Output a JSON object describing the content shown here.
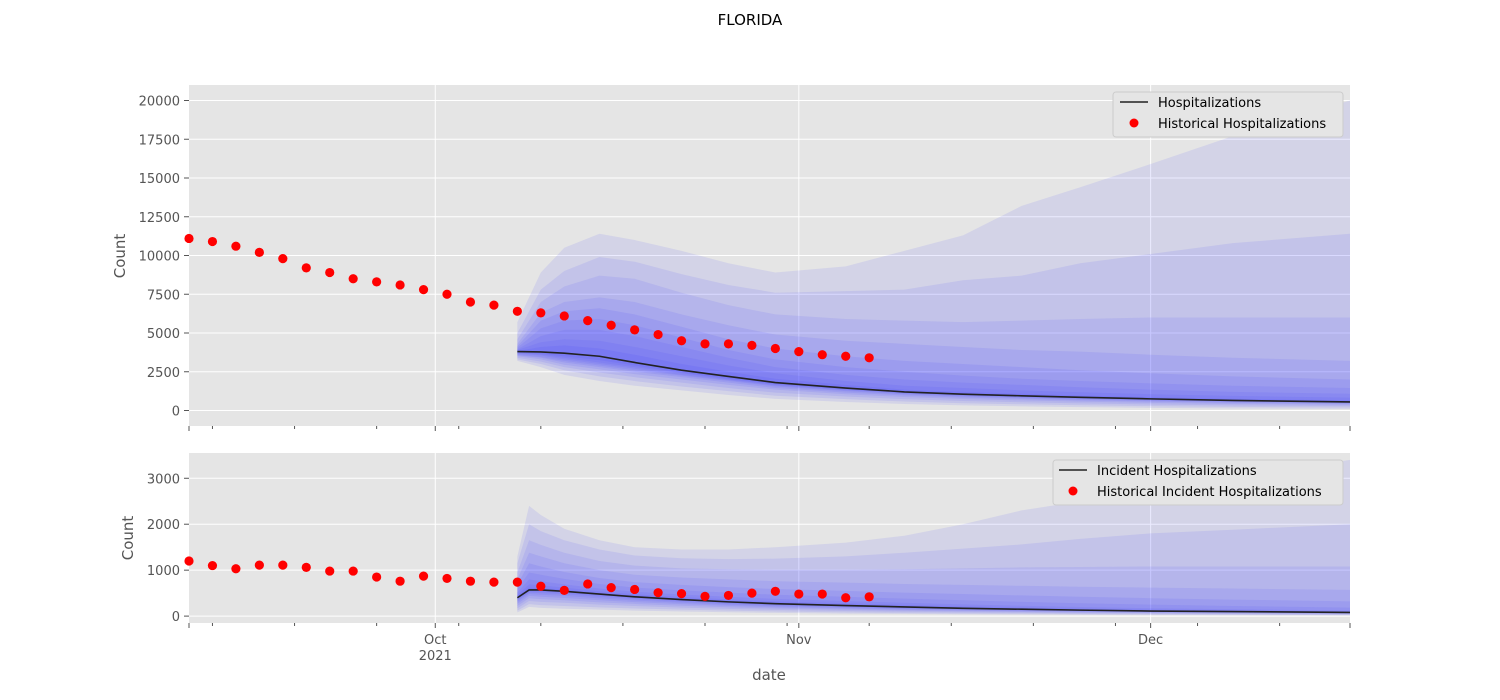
{
  "figure": {
    "title": "FLORIDA"
  },
  "chart_data": [
    {
      "type": "line",
      "ylabel": "Count",
      "xlabel": "",
      "x_range": [
        "2021-09-10",
        "2021-12-18"
      ],
      "ylim": [
        -1000,
        21000
      ],
      "yticks": [
        0,
        2500,
        5000,
        7500,
        10000,
        12500,
        15000,
        17500,
        20000
      ],
      "ytick_labels": [
        "0",
        "2500",
        "5000",
        "7500",
        "10000",
        "12500",
        "15000",
        "17500",
        "20000"
      ],
      "grid": true,
      "legend": {
        "position": "top-right",
        "entries": [
          "Hospitalizations",
          "Historical Hospitalizations"
        ]
      },
      "historical": {
        "name": "Historical Hospitalizations",
        "color": "#ff0000",
        "start_date": "2021-09-10",
        "values": [
          11100,
          10900,
          10600,
          10200,
          9800,
          9200,
          8900,
          8500,
          8300,
          8100,
          7800,
          7500,
          7000,
          6800,
          6400,
          6300,
          6100,
          5800,
          5500,
          5200,
          4900,
          4500,
          4300,
          4300,
          4200,
          4000,
          3800,
          3600,
          3500,
          3400
        ]
      },
      "forecast": {
        "name": "Hospitalizations",
        "color": "#222222",
        "band_color": "#3a3aff",
        "dates": [
          "2021-10-08",
          "2021-10-10",
          "2021-10-12",
          "2021-10-15",
          "2021-10-18",
          "2021-10-22",
          "2021-10-26",
          "2021-10-30",
          "2021-11-05",
          "2021-11-10",
          "2021-11-15",
          "2021-11-20",
          "2021-11-25",
          "2021-12-01",
          "2021-12-08",
          "2021-12-18"
        ],
        "median": [
          3800,
          3780,
          3700,
          3500,
          3100,
          2600,
          2200,
          1800,
          1450,
          1200,
          1050,
          950,
          850,
          750,
          650,
          550
        ],
        "bands": [
          {
            "low": [
              3200,
              2800,
              2300,
              1900,
              1600,
              1300,
              1000,
              750,
              550,
              420,
              330,
              270,
              220,
              170,
              130,
              100
            ],
            "high": [
              5700,
              8900,
              10500,
              11400,
              11000,
              10300,
              9500,
              8900,
              9300,
              10300,
              11300,
              13200,
              14400,
              15900,
              17700,
              20000
            ]
          },
          {
            "low": [
              3300,
              3000,
              2600,
              2200,
              1900,
              1550,
              1250,
              950,
              730,
              580,
              470,
              400,
              340,
              280,
              230,
              190
            ],
            "high": [
              5000,
              7800,
              9000,
              9900,
              9600,
              8800,
              8100,
              7600,
              7700,
              7800,
              8400,
              8700,
              9500,
              10100,
              10800,
              11400
            ]
          },
          {
            "low": [
              3400,
              3150,
              2800,
              2450,
              2150,
              1800,
              1450,
              1150,
              900,
              730,
              610,
              530,
              460,
              390,
              330,
              280
            ],
            "high": [
              4600,
              7000,
              8000,
              8700,
              8500,
              7600,
              6800,
              6200,
              5900,
              5800,
              5700,
              5800,
              5900,
              6000,
              6000,
              6000
            ]
          },
          {
            "low": [
              3500,
              3300,
              2950,
              2650,
              2350,
              2000,
              1650,
              1350,
              1050,
              870,
              740,
              650,
              570,
              490,
              420,
              360
            ],
            "high": [
              4300,
              6300,
              7000,
              7300,
              7000,
              6200,
              5500,
              4900,
              4500,
              4300,
              4100,
              3900,
              3800,
              3600,
              3400,
              3200
            ]
          },
          {
            "low": [
              3550,
              3400,
              3100,
              2800,
              2500,
              2150,
              1800,
              1450,
              1150,
              970,
              830,
              740,
              650,
              570,
              490,
              420
            ],
            "high": [
              4150,
              5800,
              6400,
              6600,
              6200,
              5400,
              4600,
              4000,
              3500,
              3200,
              3000,
              2800,
              2600,
              2400,
              2200,
              2000
            ]
          },
          {
            "low": [
              3600,
              3450,
              3200,
              2900,
              2600,
              2250,
              1900,
              1550,
              1250,
              1040,
              900,
              810,
              720,
              630,
              550,
              470
            ],
            "high": [
              4050,
              5300,
              5800,
              5900,
              5500,
              4700,
              3900,
              3300,
              2800,
              2500,
              2250,
              2050,
              1900,
              1750,
              1600,
              1450
            ]
          },
          {
            "low": [
              3650,
              3550,
              3300,
              3000,
              2700,
              2300,
              1950,
              1600,
              1300,
              1090,
              950,
              850,
              760,
              670,
              580,
              500
            ],
            "high": [
              3950,
              4800,
              5200,
              5200,
              4800,
              4100,
              3400,
              2800,
              2300,
              2000,
              1800,
              1650,
              1500,
              1350,
              1200,
              1080
            ]
          },
          {
            "low": [
              3700,
              3600,
              3400,
              3100,
              2800,
              2400,
              2000,
              1650,
              1350,
              1130,
              990,
              890,
              800,
              700,
              610,
              520
            ],
            "high": [
              3900,
              4400,
              4600,
              4500,
              4100,
              3500,
              2900,
              2400,
              1900,
              1600,
              1450,
              1300,
              1180,
              1050,
              940,
              830
            ]
          },
          {
            "low": [
              3750,
              3650,
              3500,
              3250,
              2900,
              2450,
              2050,
              1700,
              1380,
              1150,
              1010,
              910,
              820,
              720,
              630,
              540
            ],
            "high": [
              3850,
              4100,
              4200,
              4000,
              3600,
              3000,
              2500,
              2050,
              1650,
              1350,
              1200,
              1080,
              970,
              860,
              760,
              650
            ]
          }
        ]
      }
    },
    {
      "type": "line",
      "ylabel": "Count",
      "xlabel": "date",
      "x_range": [
        "2021-09-10",
        "2021-12-18"
      ],
      "ylim": [
        -150,
        3550
      ],
      "yticks": [
        0,
        1000,
        2000,
        3000
      ],
      "ytick_labels": [
        "0",
        "1000",
        "2000",
        "3000"
      ],
      "xticks": [
        "2021-10-01",
        "2021-11-01",
        "2021-12-01"
      ],
      "xtick_labels": [
        "Oct",
        "Nov",
        "Dec"
      ],
      "xtick_sublabels": [
        "2021",
        "",
        ""
      ],
      "grid": true,
      "legend": {
        "position": "top-right",
        "entries": [
          "Incident Hospitalizations",
          "Historical Incident Hospitalizations"
        ]
      },
      "historical": {
        "name": "Historical Incident Hospitalizations",
        "color": "#ff0000",
        "start_date": "2021-09-10",
        "values": [
          1200,
          1100,
          1030,
          1110,
          1110,
          1060,
          980,
          980,
          850,
          760,
          870,
          820,
          760,
          740,
          740,
          650,
          560,
          700,
          620,
          580,
          510,
          490,
          430,
          450,
          500,
          540,
          480,
          480,
          400,
          420
        ]
      },
      "forecast": {
        "name": "Incident Hospitalizations",
        "color": "#222222",
        "band_color": "#3a3aff",
        "dates": [
          "2021-10-08",
          "2021-10-09",
          "2021-10-10",
          "2021-10-12",
          "2021-10-15",
          "2021-10-18",
          "2021-10-22",
          "2021-10-26",
          "2021-10-30",
          "2021-11-05",
          "2021-11-10",
          "2021-11-15",
          "2021-11-20",
          "2021-11-25",
          "2021-12-01",
          "2021-12-08",
          "2021-12-18"
        ],
        "median": [
          400,
          570,
          570,
          540,
          480,
          420,
          360,
          310,
          270,
          230,
          200,
          170,
          150,
          130,
          110,
          100,
          80
        ],
        "bands": [
          {
            "low": [
              80,
              200,
              180,
              160,
              140,
              120,
              100,
              85,
              70,
              55,
              45,
              38,
              32,
              27,
              22,
              18,
              12
            ],
            "high": [
              1300,
              2400,
              2200,
              1900,
              1650,
              1500,
              1450,
              1450,
              1500,
              1600,
              1750,
              2000,
              2300,
              2500,
              2700,
              3000,
              3400
            ]
          },
          {
            "low": [
              120,
              260,
              240,
              220,
              190,
              165,
              140,
              120,
              100,
              82,
              68,
              58,
              50,
              43,
              36,
              30,
              22
            ],
            "high": [
              1150,
              2000,
              1850,
              1650,
              1450,
              1320,
              1260,
              1240,
              1250,
              1300,
              1380,
              1470,
              1560,
              1680,
              1800,
              1880,
              2000
            ]
          },
          {
            "low": [
              170,
              330,
              310,
              290,
              250,
              220,
              185,
              158,
              135,
              112,
              94,
              82,
              72,
              63,
              55,
              47,
              37
            ],
            "high": [
              950,
              1650,
              1550,
              1380,
              1200,
              1100,
              1040,
              1020,
              1010,
              1010,
              1020,
              1040,
              1060,
              1070,
              1080,
              1080,
              1080
            ]
          },
          {
            "low": [
              220,
              390,
              370,
              345,
              300,
              265,
              225,
              192,
              165,
              138,
              117,
              102,
              90,
              79,
              69,
              60,
              48
            ],
            "high": [
              800,
              1380,
              1300,
              1150,
              1000,
              900,
              840,
              800,
              760,
              730,
              700,
              680,
              660,
              640,
              620,
              600,
              570
            ]
          },
          {
            "low": [
              270,
              440,
              420,
              395,
              345,
              305,
              260,
              222,
              191,
              160,
              136,
              119,
              105,
              92,
              81,
              71,
              58
            ],
            "high": [
              690,
              1150,
              1080,
              960,
              830,
              740,
              680,
              630,
              590,
              550,
              510,
              480,
              450,
              420,
              390,
              360,
              320
            ]
          },
          {
            "low": [
              310,
              480,
              465,
              440,
              385,
              340,
              290,
              248,
              214,
              180,
              154,
              134,
              118,
              104,
              91,
              80,
              66
            ],
            "high": [
              590,
              950,
              900,
              810,
              700,
              620,
              560,
              510,
              465,
              420,
              380,
              345,
              310,
              280,
              250,
              220,
              185
            ]
          },
          {
            "low": [
              340,
              510,
              500,
              475,
              420,
              370,
              315,
              270,
              233,
              197,
              168,
              146,
              129,
              113,
              99,
              87,
              72
            ],
            "high": [
              510,
              800,
              760,
              690,
              600,
              530,
              470,
              420,
              375,
              330,
              290,
              255,
              225,
              198,
              172,
              150,
              125
            ]
          },
          {
            "low": [
              365,
              535,
              530,
              505,
              450,
              395,
              338,
              290,
              250,
              212,
              181,
              157,
              139,
              121,
              106,
              93,
              76
            ],
            "high": [
              460,
              690,
              670,
              620,
              540,
              475,
              415,
              365,
              322,
              280,
              244,
              212,
              187,
              163,
              141,
              124,
              100
            ]
          },
          {
            "low": [
              385,
              555,
              553,
              525,
              468,
              410,
              351,
              302,
              262,
              222,
              190,
              164,
              145,
              126,
              108,
              96,
              78
            ],
            "high": [
              430,
              620,
              610,
              575,
              505,
              445,
              385,
              335,
              294,
              252,
              218,
              186,
              162,
              141,
              121,
              107,
              86
            ]
          }
        ]
      }
    }
  ]
}
